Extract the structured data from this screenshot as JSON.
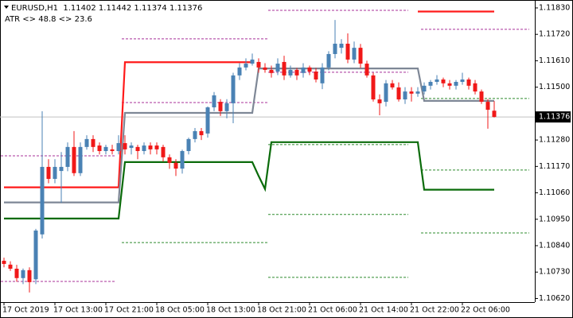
{
  "chart_data": {
    "type": "candlestick",
    "title": "EURUSD,H1  1.11402 1.11442 1.11374 1.11376",
    "subtitle": "ATR <> 48.8 <> 23.6",
    "categories": [
      "17 Oct 2019",
      null,
      null,
      null,
      null,
      null,
      null,
      null,
      "17 Oct 13:00",
      null,
      null,
      null,
      null,
      null,
      null,
      null,
      "17 Oct 21:00",
      null,
      null,
      null,
      null,
      null,
      null,
      null,
      "18 Oct 05:00",
      null,
      null,
      null,
      null,
      null,
      null,
      null,
      "18 Oct 13:00",
      null,
      null,
      null,
      null,
      null,
      null,
      null,
      "18 Oct 21:00",
      null,
      null,
      null,
      null,
      null,
      null,
      null,
      "21 Oct 06:00",
      null,
      null,
      null,
      null,
      null,
      null,
      null,
      "21 Oct 14:00",
      null,
      null,
      null,
      null,
      null,
      null,
      null,
      "21 Oct 22:00",
      null,
      null,
      null,
      null,
      null,
      null,
      null,
      "22 Oct 06:00",
      null,
      null,
      null,
      null,
      null,
      null,
      null,
      null,
      null,
      null,
      null
    ],
    "open": [
      1.10777,
      1.10761,
      1.10744,
      1.10705,
      1.10738,
      1.107,
      1.10887,
      1.11168,
      1.11118,
      1.11151,
      1.11168,
      1.11251,
      1.11142,
      1.11251,
      1.11284,
      1.11257,
      1.11234,
      1.11241,
      1.11234,
      1.11267,
      1.11247,
      1.11251,
      1.11234,
      1.11257,
      1.11257,
      1.11251,
      1.11208,
      1.11185,
      1.11161,
      1.11234,
      1.11284,
      1.11317,
      1.11307,
      1.11416,
      1.11439,
      1.114,
      1.11433,
      1.11549,
      1.11582,
      1.11598,
      1.11605,
      1.11582,
      1.11572,
      1.11565,
      1.11605,
      1.11549,
      1.11572,
      1.11559,
      1.11582,
      1.11565,
      1.11516,
      1.11582,
      1.11638,
      1.11664,
      1.11681,
      1.11615,
      1.11664,
      1.11598,
      1.11549,
      1.11449,
      1.11439,
      1.11516,
      1.11499,
      1.11449,
      1.11482,
      1.11473,
      1.11482,
      1.11506,
      1.11522,
      1.11532,
      1.11516,
      1.11506,
      1.11522,
      1.11532,
      1.11516,
      1.11482,
      1.11439,
      1.11402,
      null,
      null,
      null,
      null,
      null,
      null
    ],
    "high": [
      1.1079,
      1.10775,
      1.1076,
      1.10745,
      1.1075,
      1.1091,
      1.114,
      1.112,
      1.112,
      1.1123,
      1.1127,
      1.11317,
      1.1127,
      1.113,
      1.113,
      1.1127,
      1.1126,
      1.1126,
      1.113,
      1.113,
      1.1127,
      1.1126,
      1.1127,
      1.1127,
      1.1127,
      1.1126,
      1.1122,
      1.112,
      1.1124,
      1.1129,
      1.1133,
      1.1133,
      1.1142,
      1.1148,
      1.1145,
      1.1145,
      1.1156,
      1.116,
      1.1162,
      1.1164,
      1.1162,
      1.116,
      1.1159,
      1.1162,
      1.11631,
      1.1159,
      1.1158,
      1.116,
      1.1159,
      1.1158,
      1.116,
      1.1165,
      1.1178,
      1.117,
      1.11724,
      1.1169,
      1.1168,
      1.1161,
      1.1156,
      1.1147,
      1.1153,
      1.1153,
      1.1152,
      1.115,
      1.115,
      1.115,
      1.1152,
      1.1153,
      1.1155,
      1.1154,
      1.1153,
      1.1153,
      1.1156,
      1.1154,
      1.1153,
      1.1149,
      1.1145,
      1.11442,
      null,
      null,
      null,
      null,
      null,
      null
    ],
    "low": [
      1.1075,
      1.10735,
      1.1069,
      1.1068,
      1.10645,
      1.1068,
      1.1087,
      1.111,
      1.111,
      1.11019,
      1.1115,
      1.1113,
      1.1113,
      1.1124,
      1.1123,
      1.1122,
      1.1122,
      1.1122,
      1.1122,
      1.1122,
      1.1122,
      1.112,
      1.1122,
      1.1122,
      1.1122,
      1.1119,
      1.1116,
      1.1113,
      1.1114,
      1.1122,
      1.1127,
      1.1128,
      1.1129,
      1.114,
      1.1138,
      1.1137,
      1.1135,
      1.1153,
      1.1157,
      1.1159,
      1.1156,
      1.1156,
      1.1154,
      1.1155,
      1.1153,
      1.1154,
      1.1153,
      1.1154,
      1.1155,
      1.1152,
      1.11492,
      1.1157,
      1.1162,
      1.1164,
      1.116,
      1.116,
      1.1158,
      1.1154,
      1.1144,
      1.11383,
      1.1142,
      1.1149,
      1.1144,
      1.1143,
      1.1144,
      1.1146,
      1.1147,
      1.1149,
      1.1151,
      1.115,
      1.1149,
      1.1149,
      1.1151,
      1.1149,
      1.1147,
      1.1143,
      1.11327,
      1.11374,
      null,
      null,
      null,
      null,
      null,
      null
    ],
    "close": [
      1.10764,
      1.10744,
      1.10705,
      1.10738,
      1.10688,
      1.10903,
      1.11168,
      1.11118,
      1.11168,
      1.11168,
      1.11251,
      1.11142,
      1.11251,
      1.11284,
      1.11251,
      1.11234,
      1.11251,
      1.11234,
      1.11267,
      1.11241,
      1.11257,
      1.11234,
      1.11257,
      1.11241,
      1.11241,
      1.11208,
      1.11185,
      1.11161,
      1.11234,
      1.11284,
      1.11317,
      1.113,
      1.11416,
      1.11466,
      1.114,
      1.11433,
      1.11549,
      1.11582,
      1.11598,
      1.11615,
      1.11582,
      1.11572,
      1.11559,
      1.11598,
      1.11549,
      1.11572,
      1.11549,
      1.11582,
      1.11565,
      1.11532,
      1.11582,
      1.11638,
      1.11681,
      1.11681,
      1.11615,
      1.11664,
      1.11598,
      1.11549,
      1.11449,
      1.11433,
      1.11516,
      1.11499,
      1.11449,
      1.11482,
      1.11473,
      1.11482,
      1.11506,
      1.11522,
      1.11532,
      1.11516,
      1.11506,
      1.11522,
      1.11532,
      1.11506,
      1.11482,
      1.11439,
      1.11406,
      1.11376,
      null,
      null,
      null,
      null,
      null,
      null
    ],
    "up_color": "#4a82b4",
    "down_color": "#f01818",
    "lines": [
      {
        "color": "#ff1a1a",
        "values": [
          1.11083,
          1.11083,
          1.11083,
          1.11083,
          1.11083,
          1.11083,
          1.11083,
          1.11083,
          1.11083,
          1.11083,
          1.11083,
          1.11083,
          1.11083,
          1.11083,
          1.11083,
          1.11083,
          1.11083,
          1.11083,
          1.11083,
          1.11604,
          1.11604,
          1.11604,
          1.11604,
          1.11604,
          1.11604,
          1.11604,
          1.11604,
          1.11604,
          1.11604,
          1.11604,
          1.11604,
          1.11604,
          1.11604,
          1.11604,
          1.11604,
          1.11604,
          1.11604,
          1.11604,
          1.11604,
          1.11604,
          null,
          null,
          null,
          null,
          null,
          null,
          null,
          null,
          null,
          null,
          null,
          null,
          null,
          null,
          null,
          null,
          null,
          null,
          null,
          null,
          null,
          null,
          null,
          null,
          null,
          1.11815,
          1.11815,
          1.11815,
          1.11815,
          1.11815,
          1.11815,
          1.11815,
          1.11815,
          1.11815,
          1.11815,
          1.11815,
          1.11815,
          1.11815,
          null,
          null,
          null,
          null,
          null,
          null
        ]
      },
      {
        "color": "#7e8796",
        "values": [
          1.1102,
          1.1102,
          1.1102,
          1.1102,
          1.1102,
          1.1102,
          1.1102,
          1.1102,
          1.1102,
          1.1102,
          1.1102,
          1.1102,
          1.1102,
          1.1102,
          1.1102,
          1.1102,
          1.1102,
          1.1102,
          1.1102,
          1.11393,
          1.11393,
          1.11393,
          1.11393,
          1.11393,
          1.11393,
          1.11393,
          1.11393,
          1.11393,
          1.11393,
          1.11393,
          1.11393,
          1.11393,
          1.11393,
          1.11393,
          1.11393,
          1.11393,
          1.11393,
          1.11393,
          1.11393,
          1.11393,
          1.11578,
          1.11578,
          1.11578,
          1.11578,
          1.11578,
          1.11578,
          1.11578,
          1.11578,
          1.11578,
          1.11578,
          1.11578,
          1.11578,
          1.11578,
          1.11578,
          1.11578,
          1.11578,
          1.11578,
          1.11578,
          1.11578,
          1.11578,
          1.11578,
          1.11578,
          1.11578,
          1.11578,
          1.11578,
          1.11578,
          1.11443,
          1.11443,
          1.11443,
          1.11443,
          1.11443,
          1.11443,
          1.11443,
          1.11443,
          1.11443,
          1.11443,
          1.11443,
          1.11443,
          null,
          null,
          null,
          null,
          null,
          null
        ]
      },
      {
        "color": "#0a6b0a",
        "values": [
          1.10953,
          1.10953,
          1.10953,
          1.10953,
          1.10953,
          1.10953,
          1.10953,
          1.10953,
          1.10953,
          1.10953,
          1.10953,
          1.10953,
          1.10953,
          1.10953,
          1.10953,
          1.10953,
          1.10953,
          1.10953,
          1.10953,
          1.11188,
          1.11188,
          1.11188,
          1.11188,
          1.11188,
          1.11188,
          1.11188,
          1.11188,
          1.11188,
          1.11188,
          1.11188,
          1.11188,
          1.11188,
          1.11188,
          1.11188,
          1.11188,
          1.11188,
          1.11188,
          1.11188,
          1.11188,
          1.11188,
          1.1113,
          1.11076,
          1.11271,
          1.11271,
          1.11271,
          1.11271,
          1.11271,
          1.11271,
          1.11271,
          1.11271,
          1.11271,
          1.11271,
          1.11271,
          1.11271,
          1.11271,
          1.11271,
          1.11271,
          1.11271,
          1.11271,
          1.11271,
          1.11271,
          1.11271,
          1.11271,
          1.11271,
          1.11271,
          1.11271,
          1.11073,
          1.11073,
          1.11073,
          1.11073,
          1.11073,
          1.11073,
          1.11073,
          1.11073,
          1.11073,
          1.11073,
          1.11073,
          1.11073,
          null,
          null,
          null,
          null,
          null,
          null
        ]
      }
    ],
    "levels": [
      {
        "color": "#a8309a",
        "value": 1.11214,
        "from": 0,
        "to": 17
      },
      {
        "color": "#a8309a",
        "value": 1.10691,
        "from": 0,
        "to": 17
      },
      {
        "color": "#a8309a",
        "value": 1.11701,
        "from": 19,
        "to": 41
      },
      {
        "color": "#a8309a",
        "value": 1.11436,
        "from": 19,
        "to": 41
      },
      {
        "color": "#2e8b2e",
        "value": 1.10853,
        "from": 19,
        "to": 41
      },
      {
        "color": "#a8309a",
        "value": 1.1182,
        "from": 42,
        "to": 63
      },
      {
        "color": "#a8309a",
        "value": 1.11562,
        "from": 42,
        "to": 63
      },
      {
        "color": "#2e8b2e",
        "value": 1.11261,
        "from": 42,
        "to": 63
      },
      {
        "color": "#2e8b2e",
        "value": 1.1097,
        "from": 42,
        "to": 63
      },
      {
        "color": "#2e8b2e",
        "value": 1.10708,
        "from": 42,
        "to": 63
      },
      {
        "color": "#a8309a",
        "value": 1.11741,
        "from": 66,
        "to": 82
      },
      {
        "color": "#2e8b2e",
        "value": 1.11453,
        "from": 66,
        "to": 82
      },
      {
        "color": "#2e8b2e",
        "value": 1.11155,
        "from": 66,
        "to": 82
      },
      {
        "color": "#2e8b2e",
        "value": 1.10893,
        "from": 66,
        "to": 82
      }
    ],
    "last_price": 1.11376,
    "ylim": [
      1.10605,
      1.11863
    ],
    "yticks": [
      {
        "value": 1.1183,
        "label": "1.11830"
      },
      {
        "value": 1.1172,
        "label": "1.11720"
      },
      {
        "value": 1.1161,
        "label": "1.11610"
      },
      {
        "value": 1.115,
        "label": "1.11500"
      },
      {
        "value": 1.1128,
        "label": "1.11280"
      },
      {
        "value": 1.1117,
        "label": "1.11170"
      },
      {
        "value": 1.1106,
        "label": "1.11060"
      },
      {
        "value": 1.1095,
        "label": "1.10950"
      },
      {
        "value": 1.1084,
        "label": "1.10840"
      },
      {
        "value": 1.1073,
        "label": "1.10730"
      },
      {
        "value": 1.1062,
        "label": "1.10620"
      }
    ]
  }
}
